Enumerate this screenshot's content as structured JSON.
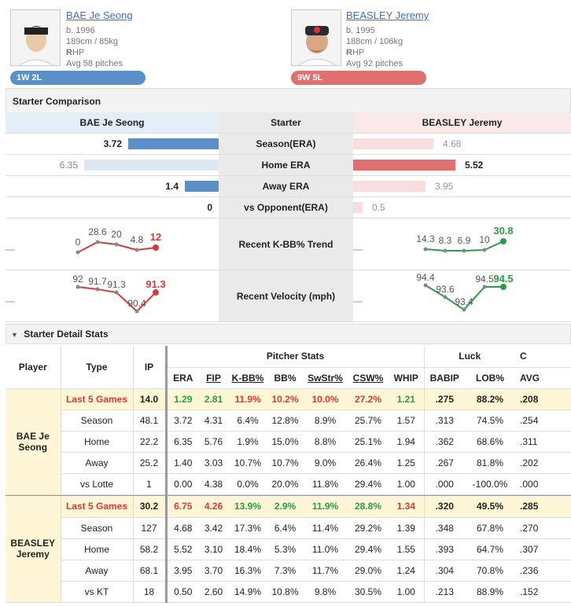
{
  "left_player": {
    "name": "BAE Je Seong",
    "born": "b. 1996",
    "body": "189cm / 85kg",
    "hand_bold": "R",
    "hand_rest": "HP",
    "avg": "Avg 58 pitches",
    "record": "1W 2L",
    "color": "#5b8fc7"
  },
  "right_player": {
    "name": "BEASLEY Jeremy",
    "born": "b. 1995",
    "body": "188cm / 106kg",
    "hand_bold": "R",
    "hand_rest": "HP",
    "avg": "Avg 92 pitches",
    "record": "9W 5L",
    "color": "#e07070"
  },
  "comparison": {
    "title": "Starter Comparison",
    "col_left": "BAE Je Seong",
    "col_mid": "Starter",
    "col_right": "BEASLEY Jeremy",
    "rows": [
      {
        "label": "Season(ERA)",
        "left": "3.72",
        "right": "4.68",
        "left_frac": 0.67,
        "right_frac": 0.52
      },
      {
        "label": "Home ERA",
        "left": "6.35",
        "right": "5.52",
        "left_frac": 1.0,
        "right_frac": 0.66
      },
      {
        "label": "Away ERA",
        "left": "1.4",
        "right": "3.95",
        "left_frac": 0.25,
        "right_frac": 0.47
      },
      {
        "label": "vs Opponent(ERA)",
        "left": "0",
        "right": "0.5",
        "left_frac": 0.0,
        "right_frac": 0.06
      }
    ],
    "kbb_label": "Recent K-BB% Trend",
    "kbb_left": [
      "0",
      "28.6",
      "20",
      "4.8",
      "12"
    ],
    "kbb_right": [
      "14.3",
      "8.3",
      "6.9",
      "10",
      "30.8"
    ],
    "velo_label": "Recent Velocity (mph)",
    "velo_left": [
      "92",
      "91.7",
      "91.3",
      "90.4",
      "91.3"
    ],
    "velo_right": [
      "94.4",
      "93.6",
      "93.4",
      "94.5",
      "94.5"
    ]
  },
  "detail": {
    "title": "Starter Detail Stats",
    "headers": {
      "player": "Player",
      "type": "Type",
      "ip": "IP",
      "pitcher_stats": "Pitcher Stats",
      "luck": "Luck",
      "era": "ERA",
      "fip": "FIP",
      "kbb": "K-BB%",
      "bb": "BB%",
      "swstr": "SwStr%",
      "csw": "CSW%",
      "whip": "WHIP",
      "babip": "BABIP",
      "lob": "LOB%",
      "avg": "AVG",
      "extra": "C"
    },
    "bae_name": "BAE Je Seong",
    "bea_name": "BEASLEY Jeremy",
    "bae_rows": [
      [
        "Last 5 Games",
        "14.0",
        "1.29",
        "2.81",
        "11.9%",
        "10.2%",
        "10.0%",
        "27.2%",
        "1.21",
        ".275",
        "88.2%",
        ".208"
      ],
      [
        "Season",
        "48.1",
        "3.72",
        "4.31",
        "6.4%",
        "12.8%",
        "8.9%",
        "25.7%",
        "1.57",
        ".313",
        "74.5%",
        ".254"
      ],
      [
        "Home",
        "22.2",
        "6.35",
        "5.76",
        "1.9%",
        "15.0%",
        "8.8%",
        "25.1%",
        "1.94",
        ".362",
        "68.6%",
        ".311"
      ],
      [
        "Away",
        "25.2",
        "1.40",
        "3.03",
        "10.7%",
        "10.7%",
        "9.0%",
        "26.4%",
        "1.25",
        ".267",
        "81.8%",
        ".202"
      ],
      [
        "vs Lotte",
        "1",
        "0.00",
        "4.38",
        "0.0%",
        "20.0%",
        "11.8%",
        "29.4%",
        "1.00",
        ".000",
        "-100.0%",
        ".000"
      ]
    ],
    "bea_rows": [
      [
        "Last 5 Games",
        "30.2",
        "6.75",
        "4.26",
        "13.9%",
        "2.9%",
        "11.9%",
        "28.8%",
        "1.34",
        ".320",
        "49.5%",
        ".285"
      ],
      [
        "Season",
        "127",
        "4.68",
        "3.42",
        "17.3%",
        "6.4%",
        "11.4%",
        "29.2%",
        "1.39",
        ".348",
        "67.8%",
        ".270"
      ],
      [
        "Home",
        "58.2",
        "5.52",
        "3.10",
        "18.4%",
        "5.3%",
        "11.0%",
        "29.4%",
        "1.55",
        ".393",
        "64.7%",
        ".307"
      ],
      [
        "Away",
        "68.1",
        "3.95",
        "3.70",
        "16.3%",
        "7.3%",
        "11.7%",
        "29.0%",
        "1.24",
        ".304",
        "70.8%",
        ".236"
      ],
      [
        "vs KT",
        "18",
        "0.50",
        "2.60",
        "14.9%",
        "10.8%",
        "9.8%",
        "30.5%",
        "1.00",
        ".213",
        "88.9%",
        ".152"
      ]
    ]
  }
}
